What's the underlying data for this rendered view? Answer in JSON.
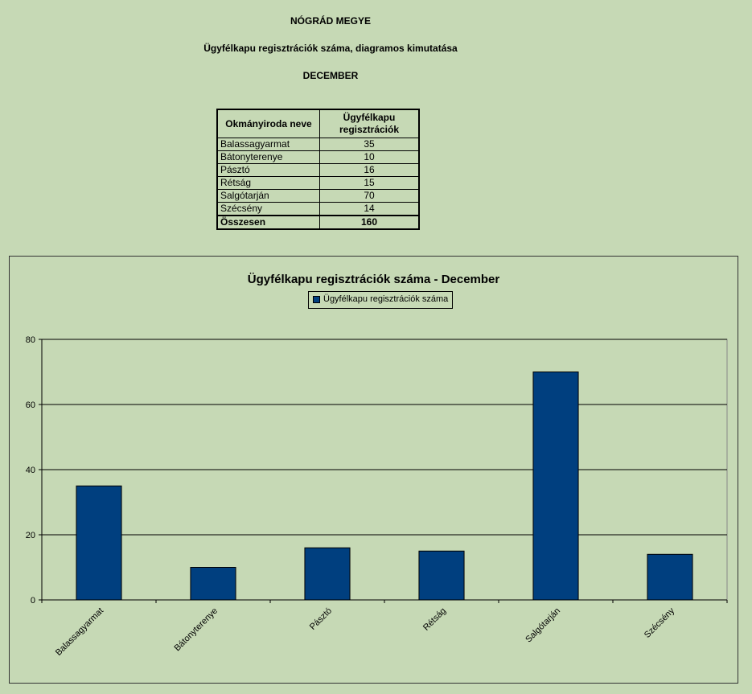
{
  "header": {
    "county": "NÓGRÁD MEGYE",
    "subtitle": "Ügyfélkapu regisztrációk száma, diagramos kimutatása",
    "month": "DECEMBER"
  },
  "table": {
    "col1": "Okmányiroda neve",
    "col2": "Ügyfélkapu regisztrációk",
    "rows": [
      {
        "name": "Balassagyarmat",
        "value": "35"
      },
      {
        "name": "Bátonyterenye",
        "value": "10"
      },
      {
        "name": "Pásztó",
        "value": "16"
      },
      {
        "name": "Rétság",
        "value": "15"
      },
      {
        "name": "Salgótarján",
        "value": "70"
      },
      {
        "name": "Szécsény",
        "value": "14"
      }
    ],
    "total_label": "Összesen",
    "total_value": "160"
  },
  "chart_data": {
    "type": "bar",
    "title": "Ügyfélkapu regisztrációk száma - December",
    "categories": [
      "Balassagyarmat",
      "Bátonyterenye",
      "Pásztó",
      "Rétság",
      "Salgótarján",
      "Szécsény"
    ],
    "series": [
      {
        "name": "Ügyfélkapu regisztrációk száma",
        "values": [
          35,
          10,
          16,
          15,
          70,
          14
        ],
        "color": "#003f7f"
      }
    ],
    "ylim": [
      0,
      80
    ],
    "yticks": [
      0,
      20,
      40,
      60,
      80
    ],
    "grid": true,
    "legend": "top-center",
    "xlabel": "",
    "ylabel": ""
  }
}
